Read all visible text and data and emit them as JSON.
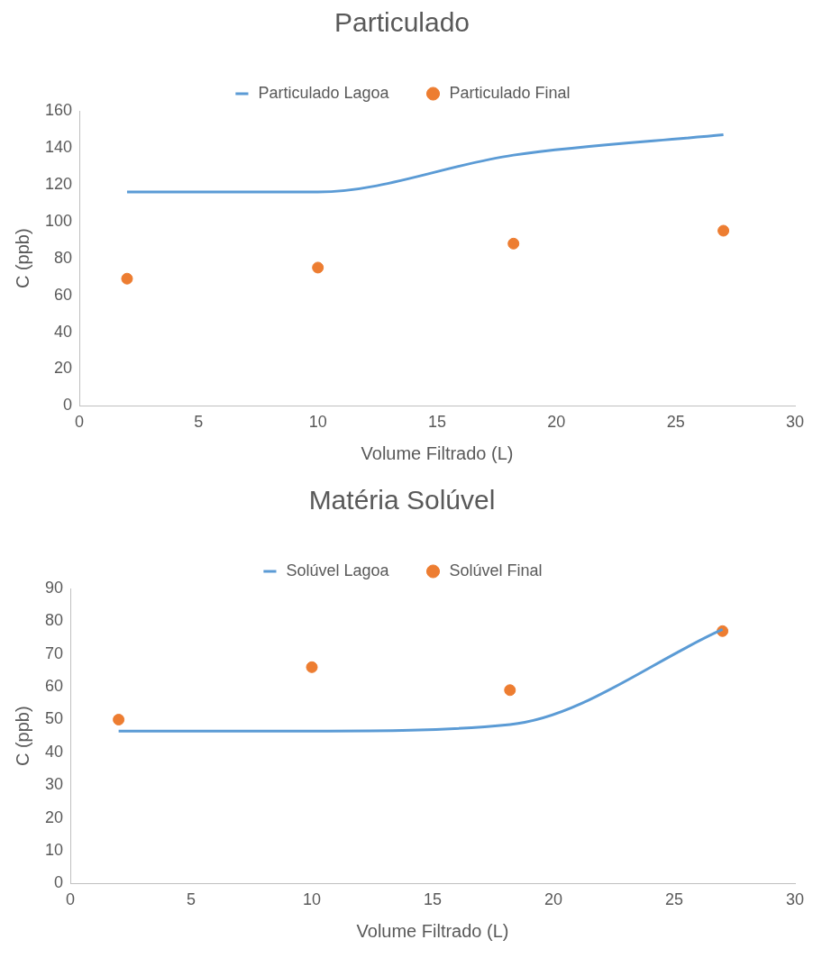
{
  "chart_data": [
    {
      "type": "line",
      "title": "Particulado",
      "xlabel": "Volume Filtrado (L)",
      "ylabel": "C (ppb)",
      "xlim": [
        0,
        30
      ],
      "xticks": [
        0,
        5,
        10,
        15,
        20,
        25,
        30
      ],
      "ylim": [
        0,
        160
      ],
      "yticks": [
        0,
        20,
        40,
        60,
        80,
        100,
        120,
        140,
        160
      ],
      "legend": "top",
      "grid": false,
      "x": [
        2,
        10,
        18.2,
        27
      ],
      "series": [
        {
          "name": "Particulado Lagoa",
          "type": "line",
          "color": "#5b9bd5",
          "marker": "none",
          "values": [
            116,
            116,
            136,
            147
          ]
        },
        {
          "name": "Particulado Final",
          "type": "scatter",
          "color": "#ed7d31",
          "marker": "circle",
          "values": [
            69,
            75,
            88,
            95
          ]
        }
      ]
    },
    {
      "type": "line",
      "title": "Matéria Solúvel",
      "xlabel": "Volume Filtrado (L)",
      "ylabel": "C (ppb)",
      "xlim": [
        0,
        30
      ],
      "xticks": [
        0,
        5,
        10,
        15,
        20,
        25,
        30
      ],
      "ylim": [
        0,
        90
      ],
      "yticks": [
        0,
        10,
        20,
        30,
        40,
        50,
        60,
        70,
        80,
        90
      ],
      "legend": "top",
      "grid": false,
      "x": [
        2,
        10,
        18.2,
        27
      ],
      "series": [
        {
          "name": "Solúvel Lagoa",
          "type": "line",
          "color": "#5b9bd5",
          "marker": "none",
          "values": [
            46.5,
            46.5,
            48.5,
            77.5
          ]
        },
        {
          "name": "Solúvel Final",
          "type": "scatter",
          "color": "#ed7d31",
          "marker": "circle",
          "values": [
            50,
            66,
            59,
            77
          ]
        }
      ]
    }
  ]
}
